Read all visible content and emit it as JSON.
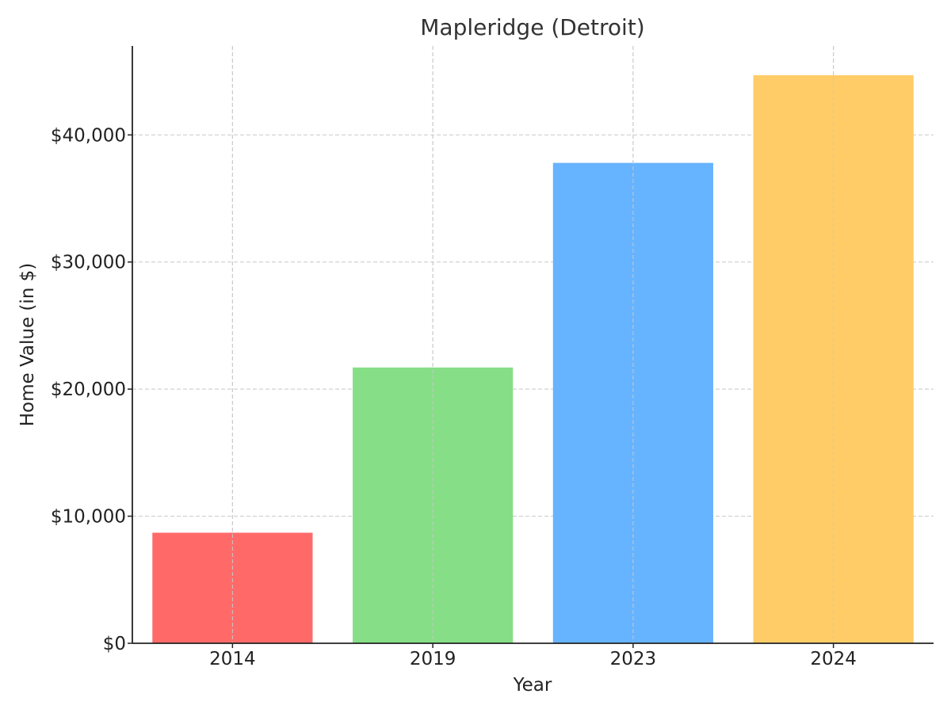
{
  "chart_data": {
    "type": "bar",
    "title": "Mapleridge (Detroit)",
    "xlabel": "Year",
    "ylabel": "Home Value (in $)",
    "categories": [
      "2014",
      "2019",
      "2023",
      "2024"
    ],
    "values": [
      8700,
      21700,
      37800,
      44700
    ],
    "colors": [
      "#ff6a69",
      "#86df86",
      "#66b3ff",
      "#ffcc68"
    ],
    "ylim": [
      0,
      47000
    ],
    "yticks": [
      0,
      10000,
      20000,
      30000,
      40000
    ],
    "ytick_labels": [
      "$0",
      "$10,000",
      "$20,000",
      "$30,000",
      "$40,000"
    ],
    "grid": true,
    "legend": "none"
  }
}
